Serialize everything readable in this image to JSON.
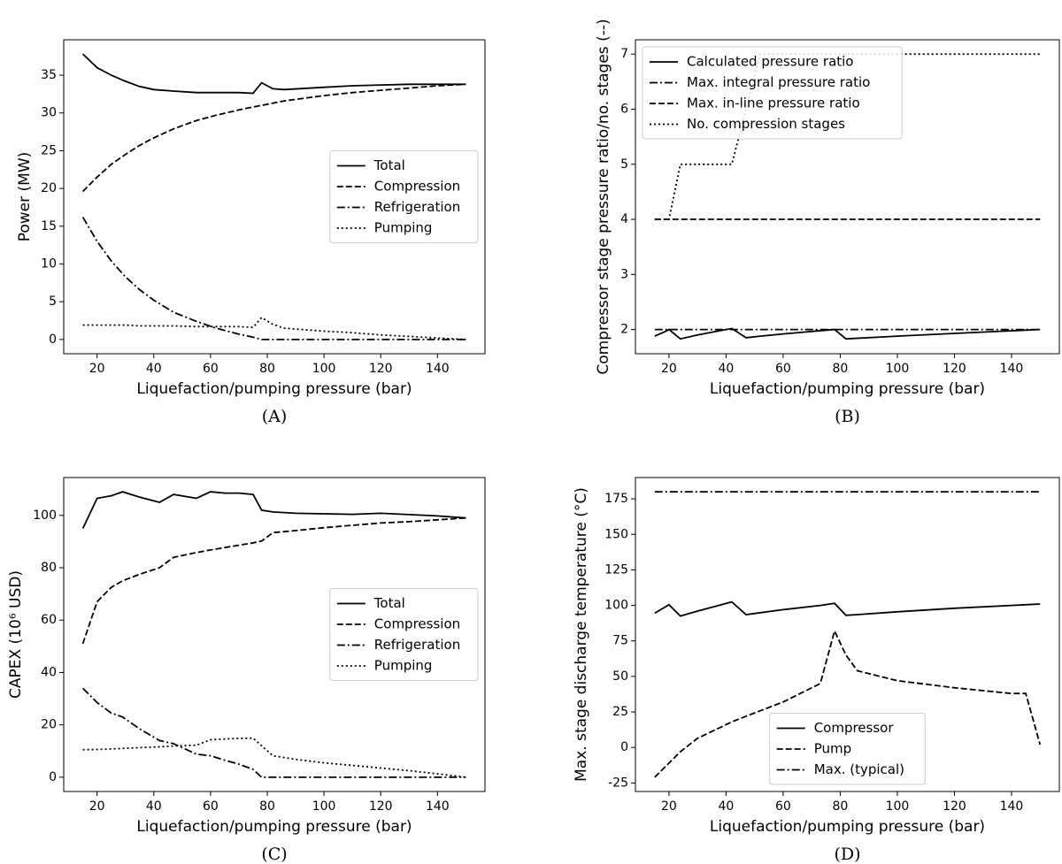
{
  "chart_data": [
    {
      "type": "line",
      "caption": "(A)",
      "xlabel": "Liquefaction/pumping pressure (bar)",
      "ylabel": "Power (MW)",
      "x": [
        15,
        20,
        25,
        30,
        35,
        40,
        47,
        55,
        62,
        70,
        75,
        78,
        82,
        86,
        100,
        110,
        120,
        130,
        140,
        150
      ],
      "series": [
        {
          "name": "Total",
          "color": "#000000",
          "dash": "solid",
          "values": [
            37.8,
            36,
            35,
            34.2,
            33.5,
            33.1,
            32.9,
            32.7,
            32.7,
            32.7,
            32.6,
            34,
            33.2,
            33.1,
            33.4,
            33.6,
            33.7,
            33.8,
            33.8,
            33.8
          ]
        },
        {
          "name": "Compression",
          "color": "#000000",
          "dash": "dashed",
          "values": [
            19.6,
            21.5,
            23.2,
            24.5,
            25.7,
            26.7,
            27.9,
            29,
            29.7,
            30.4,
            30.8,
            31.0,
            31.3,
            31.6,
            32.3,
            32.7,
            33.0,
            33.3,
            33.6,
            33.8
          ]
        },
        {
          "name": "Refrigeration",
          "color": "#000000",
          "dash": "dashdot",
          "values": [
            16.2,
            13,
            10.4,
            8.3,
            6.6,
            5.2,
            3.6,
            2.4,
            1.5,
            0.7,
            0.3,
            0,
            0,
            0,
            0,
            0,
            0,
            0,
            0,
            0
          ]
        },
        {
          "name": "Pumping",
          "color": "#000000",
          "dash": "dotted",
          "values": [
            1.9,
            1.9,
            1.9,
            1.9,
            1.8,
            1.8,
            1.8,
            1.7,
            1.7,
            1.7,
            1.6,
            2.9,
            2.0,
            1.5,
            1.1,
            0.9,
            0.6,
            0.4,
            0.2,
            0.0
          ]
        }
      ],
      "xlim": [
        8.25,
        156.75
      ],
      "xticks": [
        20,
        40,
        60,
        80,
        100,
        120,
        140
      ],
      "ylim": [
        -1.89,
        39.69
      ],
      "yticks": [
        0,
        5,
        10,
        15,
        20,
        25,
        30,
        35
      ],
      "legend": "center right"
    },
    {
      "type": "line",
      "caption": "(B)",
      "xlabel": "Liquefaction/pumping pressure (bar)",
      "ylabel": "Compressor stage pressure ratio/no. stages (--)",
      "x": [
        15,
        19,
        20,
        24,
        30,
        42,
        47,
        52,
        60,
        78,
        82,
        100,
        120,
        150
      ],
      "series": [
        {
          "name": "Calculated pressure ratio",
          "color": "#000000",
          "dash": "solid",
          "values": [
            1.88,
            1.97,
            2.0,
            1.83,
            1.9,
            2.02,
            1.85,
            1.88,
            1.92,
            2.0,
            1.83,
            1.88,
            1.93,
            2.0
          ]
        },
        {
          "name": "Max. integral pressure ratio",
          "color": "#000000",
          "dash": "dashdot",
          "values": [
            2,
            2,
            2,
            2,
            2,
            2,
            2,
            2,
            2,
            2,
            2,
            2,
            2,
            2
          ]
        },
        {
          "name": "Max. in-line pressure ratio",
          "color": "#000000",
          "dash": "dashed",
          "values": [
            4,
            4,
            4,
            4,
            4,
            4,
            4,
            4,
            4,
            4,
            4,
            4,
            4,
            4
          ]
        },
        {
          "name": "No. compression stages",
          "color": "#000000",
          "dash": "dotted",
          "values": [
            4,
            4,
            4,
            5,
            5,
            5,
            6,
            7,
            7,
            7,
            7,
            7,
            7,
            7
          ]
        }
      ],
      "xlim": [
        8.25,
        156.75
      ],
      "xticks": [
        20,
        40,
        60,
        80,
        100,
        120,
        140
      ],
      "ylim": [
        1.56,
        7.26
      ],
      "yticks": [
        2,
        3,
        4,
        5,
        6,
        7
      ],
      "legend": "upper left"
    },
    {
      "type": "line",
      "caption": "(C)",
      "xlabel": "Liquefaction/pumping pressure (bar)",
      "ylabel": "CAPEX (10⁶ USD)",
      "x": [
        15,
        20,
        25,
        29,
        35,
        42,
        47,
        55,
        60,
        65,
        70,
        75,
        78,
        82,
        90,
        100,
        110,
        120,
        130,
        140,
        150
      ],
      "series": [
        {
          "name": "Total",
          "color": "#000000",
          "dash": "solid",
          "values": [
            95,
            106.5,
            107.5,
            109,
            107,
            105,
            108,
            106.5,
            109,
            108.5,
            108.5,
            108,
            102,
            101.3,
            100.8,
            100.6,
            100.4,
            100.8,
            100.3,
            99.8,
            99
          ]
        },
        {
          "name": "Compression",
          "color": "#000000",
          "dash": "dashed",
          "values": [
            51,
            67,
            72.5,
            75,
            77.5,
            80,
            84,
            85.8,
            86.8,
            87.7,
            88.6,
            89.5,
            90.2,
            93.4,
            94.2,
            95.3,
            96.2,
            97.1,
            97.6,
            98.3,
            99
          ]
        },
        {
          "name": "Refrigeration",
          "color": "#000000",
          "dash": "dashdot",
          "values": [
            34,
            28.5,
            24.5,
            23,
            18.5,
            14,
            12.8,
            8.8,
            8.2,
            6.5,
            5,
            3,
            0,
            0,
            0,
            0,
            0,
            0,
            0,
            0,
            0
          ]
        },
        {
          "name": "Pumping",
          "color": "#000000",
          "dash": "dotted",
          "values": [
            10.5,
            10.6,
            10.8,
            11,
            11.3,
            11.6,
            11.9,
            12.2,
            14.3,
            14.6,
            14.8,
            14.9,
            12,
            8.2,
            6.8,
            5.5,
            4.5,
            3.5,
            2.5,
            1.3,
            0
          ]
        }
      ],
      "xlim": [
        8.25,
        156.75
      ],
      "xticks": [
        20,
        40,
        60,
        80,
        100,
        120,
        140
      ],
      "ylim": [
        -5.45,
        114.45
      ],
      "yticks": [
        0,
        20,
        40,
        60,
        80,
        100
      ],
      "legend": "center right"
    },
    {
      "type": "line",
      "caption": "(D)",
      "xlabel": "Liquefaction/pumping pressure (bar)",
      "ylabel": "Max. stage discharge temperature (°C)",
      "x": [
        15,
        20,
        24,
        30,
        42,
        47,
        60,
        73,
        78,
        82,
        86,
        100,
        120,
        140,
        145,
        150
      ],
      "series": [
        {
          "name": "Compressor",
          "color": "#000000",
          "dash": "solid",
          "values": [
            94.5,
            100.5,
            92.5,
            96,
            102.5,
            93.5,
            97,
            100,
            101.5,
            93,
            93.5,
            95.5,
            98,
            100,
            100.5,
            101
          ]
        },
        {
          "name": "Pump",
          "color": "#000000",
          "dash": "dashed",
          "values": [
            -21,
            -11,
            -3,
            6.5,
            18,
            22,
            32,
            45,
            82,
            65,
            54,
            47,
            42,
            38,
            38,
            2
          ]
        },
        {
          "name": "Max. (typical)",
          "color": "#000000",
          "dash": "dashdot",
          "values": [
            180,
            180,
            180,
            180,
            180,
            180,
            180,
            180,
            180,
            180,
            180,
            180,
            180,
            180,
            180,
            180
          ]
        }
      ],
      "xlim": [
        8.25,
        156.75
      ],
      "xticks": [
        20,
        40,
        60,
        80,
        100,
        120,
        140
      ],
      "ylim": [
        -31,
        190
      ],
      "yticks": [
        -25,
        0,
        25,
        50,
        75,
        100,
        125,
        150,
        175
      ],
      "legend": "lower center"
    }
  ]
}
